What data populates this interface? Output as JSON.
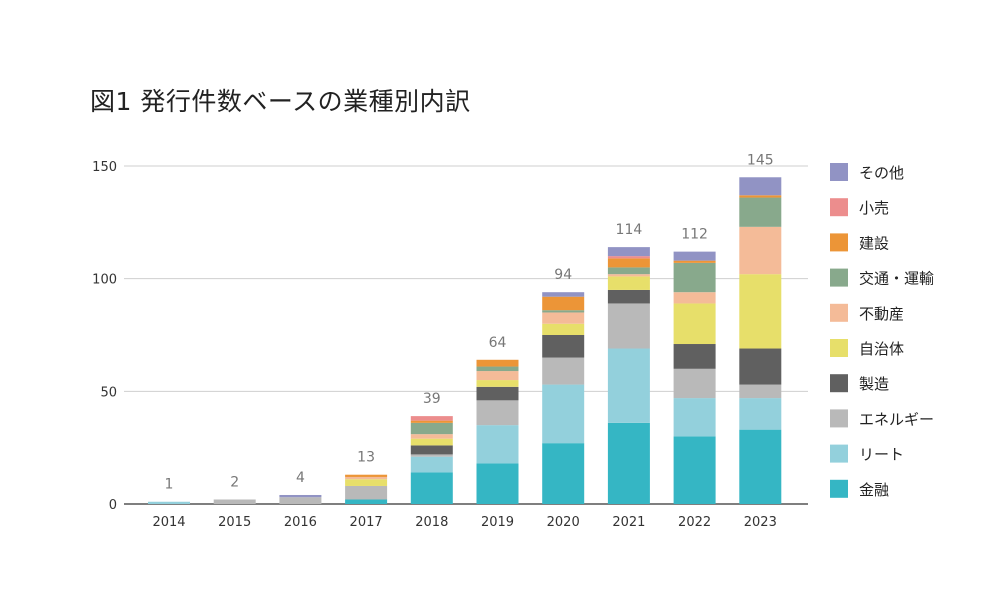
{
  "title": "図1 発行件数ベースの業種別内訳",
  "chart_data": {
    "type": "bar",
    "stacked": true,
    "title": "図1 発行件数ベースの業種別内訳",
    "categories": [
      "2014",
      "2015",
      "2016",
      "2017",
      "2018",
      "2019",
      "2020",
      "2021",
      "2022",
      "2023"
    ],
    "totals": [
      1,
      2,
      4,
      13,
      39,
      64,
      94,
      114,
      112,
      145
    ],
    "ylim": [
      0,
      150
    ],
    "yticks": [
      0,
      50,
      100,
      150
    ],
    "grid": true,
    "legend_position": "right",
    "series": [
      {
        "name": "金融",
        "color": "#35b6c4",
        "values": [
          0,
          0,
          0,
          2,
          14,
          18,
          27,
          36,
          30,
          33
        ]
      },
      {
        "name": "リート",
        "color": "#93d0dc",
        "values": [
          1,
          0,
          0,
          0,
          7,
          17,
          26,
          33,
          17,
          14
        ]
      },
      {
        "name": "エネルギー",
        "color": "#b9b9b9",
        "values": [
          0,
          2,
          3,
          6,
          1,
          11,
          12,
          20,
          13,
          6
        ]
      },
      {
        "name": "製造",
        "color": "#606060",
        "values": [
          0,
          0,
          0,
          0,
          4,
          6,
          10,
          6,
          11,
          16
        ]
      },
      {
        "name": "自治体",
        "color": "#e7df6a",
        "values": [
          0,
          0,
          0,
          3,
          3,
          3,
          5,
          6,
          18,
          33
        ]
      },
      {
        "name": "不動産",
        "color": "#f4bb98",
        "values": [
          0,
          0,
          0,
          1,
          2,
          4,
          5,
          1,
          5,
          21
        ]
      },
      {
        "name": "交通・運輸",
        "color": "#88a98c",
        "values": [
          0,
          0,
          0,
          0,
          5,
          2,
          1,
          3,
          13,
          13
        ]
      },
      {
        "name": "建設",
        "color": "#ec9537",
        "values": [
          0,
          0,
          0,
          1,
          1,
          3,
          6,
          4,
          1,
          1
        ]
      },
      {
        "name": "小売",
        "color": "#ec8d8d",
        "values": [
          0,
          0,
          0,
          0,
          2,
          0,
          0,
          1,
          0,
          0
        ]
      },
      {
        "name": "その他",
        "color": "#9193c4",
        "values": [
          0,
          0,
          1,
          0,
          0,
          0,
          2,
          4,
          4,
          8
        ]
      }
    ]
  }
}
